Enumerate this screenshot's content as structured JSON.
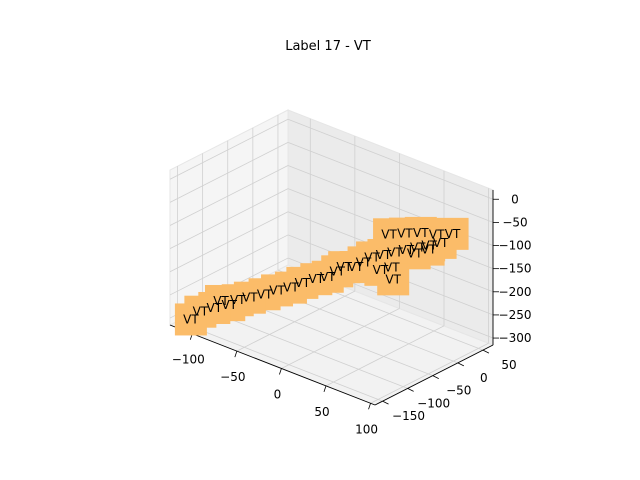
{
  "title": "Label 17 - VT",
  "chart_data": {
    "type": "scatter",
    "projection": "3d",
    "title": "Label 17 - VT",
    "xlabel": "",
    "ylabel": "",
    "zlabel": "",
    "xlim": [
      -125,
      105
    ],
    "ylim": [
      -165,
      70
    ],
    "zlim": [
      -315,
      20
    ],
    "x_ticks": [
      -100,
      -50,
      0,
      50,
      100
    ],
    "y_ticks": [
      -150,
      -100,
      -50,
      0,
      50
    ],
    "z_ticks": [
      -300,
      -250,
      -200,
      -150,
      -100,
      -50,
      0
    ],
    "x_tick_labels": [
      "−100",
      "−50",
      "0",
      "50",
      "100"
    ],
    "y_tick_labels": [
      "−150",
      "−100",
      "−50",
      "0",
      "50"
    ],
    "z_tick_labels": [
      "−300",
      "−250",
      "−200",
      "−150",
      "−100",
      "−50",
      "0"
    ],
    "marker_color": "#fbbc69",
    "point_label": "VT",
    "grid": true,
    "points": [
      {
        "x": -110,
        "y": -150,
        "z": -300
      },
      {
        "x": -105,
        "y": -140,
        "z": -285
      },
      {
        "x": -95,
        "y": -130,
        "z": -275
      },
      {
        "x": -92,
        "y": -122,
        "z": -262
      },
      {
        "x": -85,
        "y": -118,
        "z": -268
      },
      {
        "x": -80,
        "y": -110,
        "z": -258
      },
      {
        "x": -72,
        "y": -100,
        "z": -252
      },
      {
        "x": -60,
        "y": -92,
        "z": -240
      },
      {
        "x": -50,
        "y": -85,
        "z": -228
      },
      {
        "x": -40,
        "y": -75,
        "z": -220
      },
      {
        "x": -30,
        "y": -70,
        "z": -205
      },
      {
        "x": -20,
        "y": -60,
        "z": -195
      },
      {
        "x": -10,
        "y": -55,
        "z": -185
      },
      {
        "x": -5,
        "y": -45,
        "z": -175
      },
      {
        "x": 0,
        "y": -40,
        "z": -165
      },
      {
        "x": 10,
        "y": -35,
        "z": -160
      },
      {
        "x": 15,
        "y": -28,
        "z": -150
      },
      {
        "x": 20,
        "y": -20,
        "z": -140
      },
      {
        "x": 30,
        "y": -15,
        "z": -130
      },
      {
        "x": 40,
        "y": -10,
        "z": -120
      },
      {
        "x": 50,
        "y": -5,
        "z": -110
      },
      {
        "x": 60,
        "y": 0,
        "z": -100
      },
      {
        "x": 70,
        "y": 5,
        "z": -90
      },
      {
        "x": 80,
        "y": 10,
        "z": -80
      },
      {
        "x": 35,
        "y": -30,
        "z": -150
      },
      {
        "x": 45,
        "y": -25,
        "z": -140
      },
      {
        "x": 55,
        "y": -40,
        "z": -150
      },
      {
        "x": 65,
        "y": -15,
        "z": -100
      },
      {
        "x": 75,
        "y": -5,
        "z": -90
      },
      {
        "x": 25,
        "y": 5,
        "z": -100
      },
      {
        "x": 40,
        "y": 10,
        "z": -90
      },
      {
        "x": 55,
        "y": 15,
        "z": -80
      },
      {
        "x": 70,
        "y": 20,
        "z": -75
      },
      {
        "x": 85,
        "y": 25,
        "z": -65
      }
    ]
  }
}
